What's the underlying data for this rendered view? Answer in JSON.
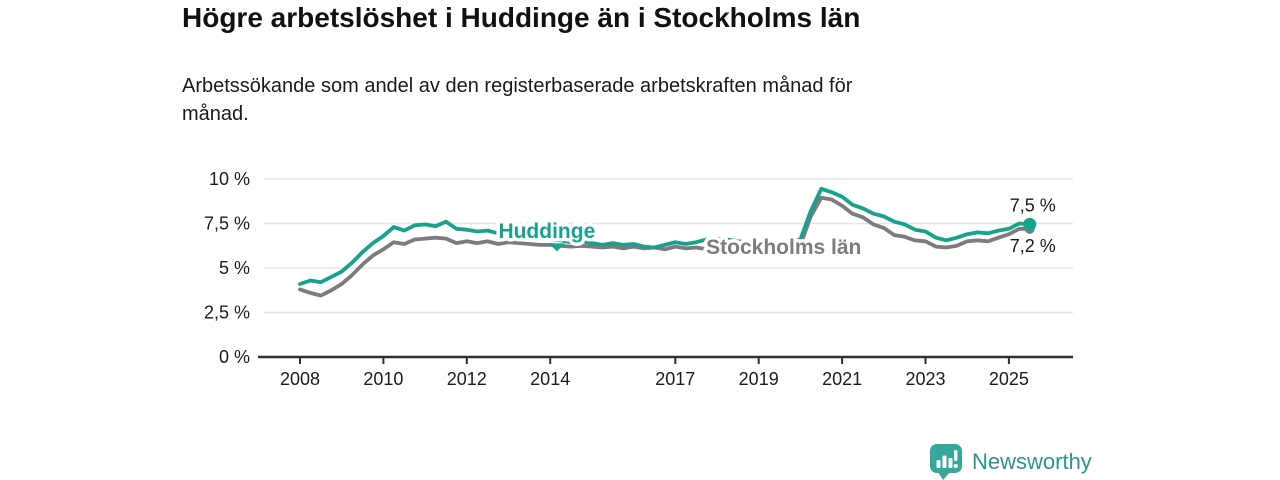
{
  "title": "Högre arbetslöshet i Huddinge än i Stockholms län",
  "subtitle": "Arbetssökande som andel av den registerbaserade arbetskraften månad för månad.",
  "footer": {
    "brand": "Newsworthy",
    "icon": "newsworthy-barchart-pin-icon"
  },
  "colors": {
    "huddinge": "#17a28e",
    "stockholm": "#7c7c7c",
    "grid": "#e5e5e5",
    "axis": "#2f2f2f",
    "tick_text": "#1c1c1c",
    "end_label_text": "#1a1a1a",
    "logo": "#35a79b"
  },
  "chart_data": {
    "type": "line",
    "title": "Högre arbetslöshet i Huddinge än i Stockholms län",
    "xlabel": "",
    "ylabel": "",
    "x_ticks": [
      2008,
      2010,
      2012,
      2014,
      2017,
      2019,
      2021,
      2023,
      2025
    ],
    "y_ticks": [
      {
        "value": 0,
        "label": "0 %"
      },
      {
        "value": 2.5,
        "label": "2,5 %"
      },
      {
        "value": 5,
        "label": "5 %"
      },
      {
        "value": 7.5,
        "label": "7,5 %"
      },
      {
        "value": 10,
        "label": "10 %"
      }
    ],
    "ylim": [
      0,
      10
    ],
    "xlim": [
      2007.1,
      2026.5
    ],
    "grid": "horizontal",
    "legend_position": "inline-labels",
    "series": [
      {
        "name": "Stockholms län",
        "color": "#7c7c7c",
        "end_label": "7,2 %",
        "label_anchor": {
          "x_year": 2017.74,
          "y_pct": 5.79,
          "anchor": "start",
          "marker": null
        },
        "points": [
          [
            2008,
            3.8
          ],
          [
            2008.25,
            3.6
          ],
          [
            2008.5,
            3.45
          ],
          [
            2008.75,
            3.75
          ],
          [
            2009,
            4.1
          ],
          [
            2009.25,
            4.6
          ],
          [
            2009.5,
            5.2
          ],
          [
            2009.75,
            5.7
          ],
          [
            2010,
            6.05
          ],
          [
            2010.25,
            6.45
          ],
          [
            2010.5,
            6.35
          ],
          [
            2010.75,
            6.6
          ],
          [
            2011,
            6.65
          ],
          [
            2011.25,
            6.7
          ],
          [
            2011.5,
            6.65
          ],
          [
            2011.75,
            6.4
          ],
          [
            2012,
            6.5
          ],
          [
            2012.25,
            6.4
          ],
          [
            2012.5,
            6.5
          ],
          [
            2012.75,
            6.35
          ],
          [
            2013,
            6.45
          ],
          [
            2013.25,
            6.4
          ],
          [
            2013.5,
            6.35
          ],
          [
            2013.75,
            6.3
          ],
          [
            2014,
            6.3
          ],
          [
            2014.25,
            6.25
          ],
          [
            2014.5,
            6.2
          ],
          [
            2014.75,
            6.25
          ],
          [
            2015,
            6.2
          ],
          [
            2015.25,
            6.15
          ],
          [
            2015.5,
            6.2
          ],
          [
            2015.75,
            6.1
          ],
          [
            2016,
            6.2
          ],
          [
            2016.25,
            6.1
          ],
          [
            2016.5,
            6.15
          ],
          [
            2016.75,
            6.05
          ],
          [
            2017,
            6.2
          ],
          [
            2017.25,
            6.1
          ],
          [
            2017.5,
            6.15
          ],
          [
            2017.75,
            6.05
          ],
          [
            2018,
            6.15
          ],
          [
            2018.25,
            6.1
          ],
          [
            2018.5,
            6.05
          ],
          [
            2018.75,
            6.0
          ],
          [
            2019,
            6.0
          ],
          [
            2019.25,
            5.95
          ],
          [
            2019.5,
            6.0
          ],
          [
            2019.75,
            6.1
          ],
          [
            2020,
            6.3
          ],
          [
            2020.25,
            7.9
          ],
          [
            2020.5,
            8.95
          ],
          [
            2020.75,
            8.85
          ],
          [
            2021,
            8.5
          ],
          [
            2021.25,
            8.05
          ],
          [
            2021.5,
            7.85
          ],
          [
            2021.75,
            7.45
          ],
          [
            2022,
            7.25
          ],
          [
            2022.25,
            6.85
          ],
          [
            2022.5,
            6.75
          ],
          [
            2022.75,
            6.55
          ],
          [
            2023,
            6.5
          ],
          [
            2023.25,
            6.2
          ],
          [
            2023.5,
            6.15
          ],
          [
            2023.75,
            6.25
          ],
          [
            2024,
            6.5
          ],
          [
            2024.25,
            6.55
          ],
          [
            2024.5,
            6.5
          ],
          [
            2024.75,
            6.7
          ],
          [
            2025,
            6.9
          ],
          [
            2025.25,
            7.2
          ],
          [
            2025.5,
            7.2
          ]
        ]
      },
      {
        "name": "Huddinge",
        "color": "#17a28e",
        "end_label": "7,5 %",
        "label_anchor": {
          "x_year": 2013.92,
          "y_pct": 6.69,
          "anchor": "middle",
          "marker": {
            "x_year": 2014.16,
            "y_pct": 6.38
          }
        },
        "points": [
          [
            2008,
            4.1
          ],
          [
            2008.25,
            4.3
          ],
          [
            2008.5,
            4.2
          ],
          [
            2008.75,
            4.5
          ],
          [
            2009,
            4.8
          ],
          [
            2009.25,
            5.3
          ],
          [
            2009.5,
            5.9
          ],
          [
            2009.75,
            6.4
          ],
          [
            2010,
            6.8
          ],
          [
            2010.25,
            7.3
          ],
          [
            2010.5,
            7.1
          ],
          [
            2010.75,
            7.4
          ],
          [
            2011,
            7.45
          ],
          [
            2011.25,
            7.35
          ],
          [
            2011.5,
            7.6
          ],
          [
            2011.75,
            7.2
          ],
          [
            2012,
            7.15
          ],
          [
            2012.25,
            7.05
          ],
          [
            2012.5,
            7.1
          ],
          [
            2012.75,
            6.95
          ],
          [
            2013,
            6.9
          ],
          [
            2013.25,
            6.85
          ],
          [
            2013.5,
            6.75
          ],
          [
            2013.75,
            6.7
          ],
          [
            2014,
            6.6
          ],
          [
            2014.25,
            6.55
          ],
          [
            2014.5,
            6.45
          ],
          [
            2014.75,
            6.5
          ],
          [
            2015,
            6.4
          ],
          [
            2015.25,
            6.3
          ],
          [
            2015.5,
            6.4
          ],
          [
            2015.75,
            6.3
          ],
          [
            2016,
            6.35
          ],
          [
            2016.25,
            6.2
          ],
          [
            2016.5,
            6.15
          ],
          [
            2016.75,
            6.3
          ],
          [
            2017,
            6.45
          ],
          [
            2017.25,
            6.35
          ],
          [
            2017.5,
            6.45
          ],
          [
            2017.75,
            6.6
          ],
          [
            2018,
            6.65
          ],
          [
            2018.25,
            6.6
          ],
          [
            2018.5,
            6.5
          ],
          [
            2018.75,
            6.45
          ],
          [
            2019,
            6.4
          ],
          [
            2019.25,
            6.35
          ],
          [
            2019.5,
            6.4
          ],
          [
            2019.75,
            6.45
          ],
          [
            2020,
            6.6
          ],
          [
            2020.25,
            8.2
          ],
          [
            2020.5,
            9.45
          ],
          [
            2020.75,
            9.25
          ],
          [
            2021,
            9.0
          ],
          [
            2021.25,
            8.55
          ],
          [
            2021.5,
            8.35
          ],
          [
            2021.75,
            8.05
          ],
          [
            2022,
            7.9
          ],
          [
            2022.25,
            7.6
          ],
          [
            2022.5,
            7.45
          ],
          [
            2022.75,
            7.15
          ],
          [
            2023,
            7.05
          ],
          [
            2023.25,
            6.7
          ],
          [
            2023.5,
            6.55
          ],
          [
            2023.75,
            6.7
          ],
          [
            2024,
            6.9
          ],
          [
            2024.25,
            7.0
          ],
          [
            2024.5,
            6.95
          ],
          [
            2024.75,
            7.1
          ],
          [
            2025,
            7.2
          ],
          [
            2025.25,
            7.5
          ],
          [
            2025.5,
            7.45
          ]
        ]
      }
    ]
  }
}
